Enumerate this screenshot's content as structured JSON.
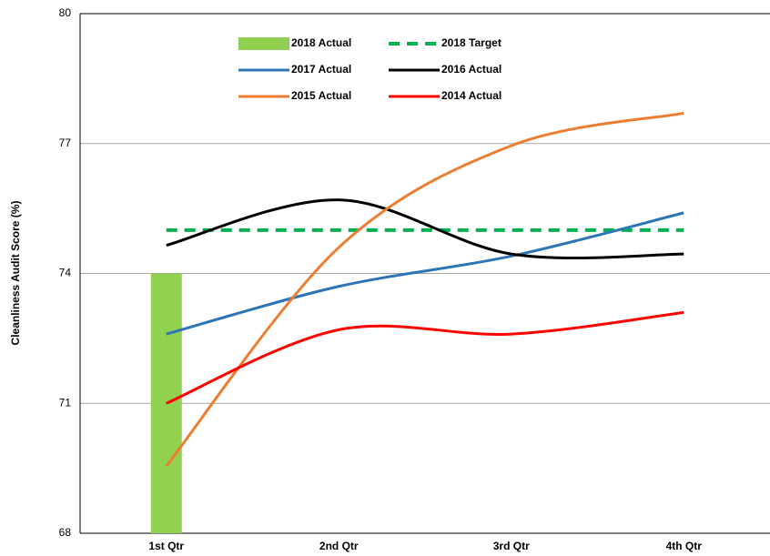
{
  "chart_data": {
    "type": "combo",
    "y_label": "Cleanliness Audit Score (%)",
    "categories": [
      "1st Qtr",
      "2nd Qtr",
      "3rd Qtr",
      "4th Qtr"
    ],
    "ylim": [
      68,
      80
    ],
    "yticks": [
      68,
      71,
      74,
      77,
      80
    ],
    "grid": true,
    "series": [
      {
        "name": "2018 Actual",
        "type": "bar",
        "color": "#92d050",
        "values": [
          74,
          null,
          null,
          null
        ]
      },
      {
        "name": "2018 Target",
        "type": "line",
        "dashed": true,
        "color": "#00b050",
        "values": [
          75,
          75,
          75,
          75
        ]
      },
      {
        "name": "2017 Actual",
        "type": "line",
        "color": "#2e75b6",
        "values": [
          72.6,
          73.7,
          74.4,
          75.4
        ]
      },
      {
        "name": "2016 Actual",
        "type": "line",
        "color": "#000000",
        "values": [
          74.65,
          75.7,
          74.45,
          74.45
        ]
      },
      {
        "name": "2015 Actual",
        "type": "line",
        "color": "#ed7d31",
        "values": [
          69.55,
          74.6,
          76.95,
          77.7
        ]
      },
      {
        "name": "2014 Actual",
        "type": "line",
        "color": "#ff0000",
        "values": [
          71.0,
          72.7,
          72.6,
          73.1
        ]
      }
    ]
  }
}
